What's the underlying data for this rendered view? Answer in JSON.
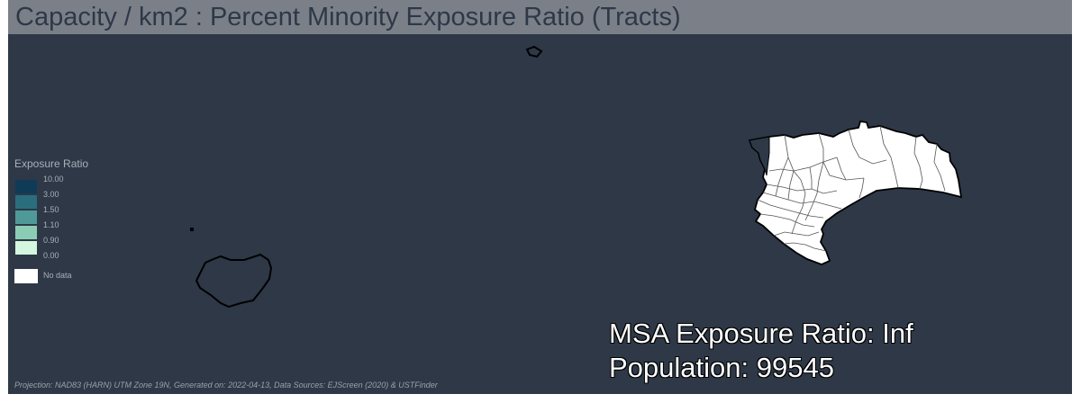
{
  "title": "Capacity / km2 : Percent Minority Exposure Ratio (Tracts)",
  "legend": {
    "title": "Exposure Ratio",
    "classes": [
      {
        "label": "10.00",
        "color": "#103b56"
      },
      {
        "label": "3.00",
        "color": "#2a6e7e"
      },
      {
        "label": "1.50",
        "color": "#4f9a98"
      },
      {
        "label": "1.10",
        "color": "#8acdb4"
      },
      {
        "label": "0.90",
        "color": "#d4f7df"
      },
      {
        "label": "0.00",
        "color": ""
      }
    ],
    "no_data_label": "No data",
    "no_data_color": "#ffffff"
  },
  "stats": {
    "exposure_ratio_label": "MSA Exposure Ratio: Inf",
    "population_label": "Population: 99545"
  },
  "footer": "Projection: NAD83 (HARN) UTM Zone 19N, Generated on: 2022-04-13, Data Sources: EJScreen (2020) & USTFinder",
  "colors": {
    "map_background": "#2e3847",
    "title_bar": "#7b8088",
    "region_fill": "#ffffff",
    "outline": "#000000"
  }
}
